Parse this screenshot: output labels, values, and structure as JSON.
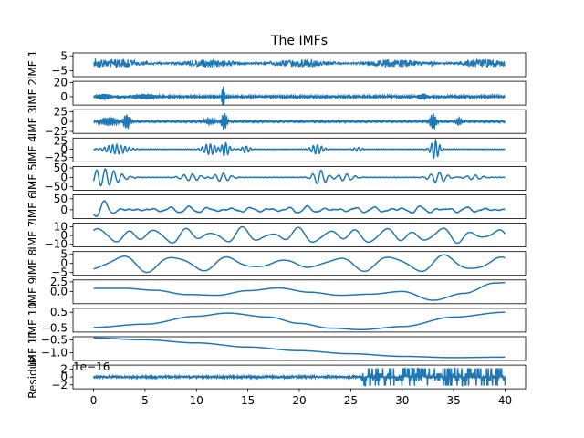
{
  "chart_data": {
    "type": "line",
    "title": "The IMFs",
    "xlabel": "",
    "x_range": [
      0,
      40
    ],
    "xlim": [
      -2,
      42
    ],
    "x_ticks": [
      "0",
      "5",
      "10",
      "15",
      "20",
      "25",
      "30",
      "35",
      "40"
    ],
    "grid": false,
    "legend": "none",
    "line_color": "#1f77b4",
    "panels": [
      {
        "ylabel": "IMF 1",
        "ylim": [
          -9,
          7
        ],
        "y_ticks": [
          {
            "v": 5,
            "t": "5"
          },
          {
            "v": -5,
            "t": "−5"
          }
        ],
        "signal": {
          "kind": "noise",
          "amp": 2.8,
          "bursts": [
            {
              "t": 0.3,
              "w": 0.4,
              "a": 2.5
            },
            {
              "t": 33,
              "w": 0.3,
              "a": 2.0
            }
          ]
        }
      },
      {
        "ylabel": "IMF 2",
        "ylim": [
          -12,
          22
        ],
        "y_ticks": [
          {
            "v": 20,
            "t": "20"
          },
          {
            "v": 0,
            "t": "0"
          }
        ],
        "signal": {
          "kind": "bursts",
          "base": 1.2,
          "freq": 9,
          "bursts": [
            {
              "t": 1,
              "w": 0.8,
              "a": 4
            },
            {
              "t": 12.6,
              "w": 0.15,
              "a": 18
            },
            {
              "t": 5,
              "w": 1.5,
              "a": 3
            },
            {
              "t": 32,
              "w": 0.5,
              "a": 4
            }
          ]
        }
      },
      {
        "ylabel": "IMF 3",
        "ylim": [
          -30,
          30
        ],
        "y_ticks": [
          {
            "v": 25,
            "t": "25"
          },
          {
            "v": 0,
            "t": "0"
          },
          {
            "v": -25,
            "t": "−25"
          }
        ],
        "signal": {
          "kind": "bursts",
          "base": 1.5,
          "freq": 5,
          "bursts": [
            {
              "t": 1.5,
              "w": 1.0,
              "a": 10
            },
            {
              "t": 3.2,
              "w": 0.4,
              "a": 18
            },
            {
              "t": 12.7,
              "w": 0.3,
              "a": 22
            },
            {
              "t": 33,
              "w": 0.35,
              "a": 20
            },
            {
              "t": 35.5,
              "w": 0.3,
              "a": 10
            },
            {
              "t": 11.3,
              "w": 0.6,
              "a": 7
            }
          ]
        }
      },
      {
        "ylabel": "IMF 4",
        "ylim": [
          -38,
          34
        ],
        "y_ticks": [
          {
            "v": 25,
            "t": "25"
          },
          {
            "v": 0,
            "t": "0"
          },
          {
            "v": -25,
            "t": "−25"
          }
        ],
        "signal": {
          "kind": "bursts",
          "base": 1.0,
          "freq": 2.5,
          "bursts": [
            {
              "t": 2.2,
              "w": 1.3,
              "a": 14
            },
            {
              "t": 11.3,
              "w": 0.8,
              "a": 16
            },
            {
              "t": 12.8,
              "w": 0.5,
              "a": 20
            },
            {
              "t": 14.8,
              "w": 0.5,
              "a": 10
            },
            {
              "t": 21.7,
              "w": 0.7,
              "a": 14
            },
            {
              "t": 33.2,
              "w": 0.5,
              "a": 28
            },
            {
              "t": 25.7,
              "w": 0.5,
              "a": 6
            }
          ]
        }
      },
      {
        "ylabel": "IMF 5",
        "ylim": [
          -68,
          58
        ],
        "y_ticks": [
          {
            "v": 50,
            "t": "50"
          },
          {
            "v": 0,
            "t": "0"
          },
          {
            "v": -50,
            "t": "−50"
          }
        ],
        "signal": {
          "kind": "bursts",
          "base": 1.5,
          "freq": 1.2,
          "bursts": [
            {
              "t": 1.0,
              "w": 1.8,
              "a": 45
            },
            {
              "t": 9.5,
              "w": 1.2,
              "a": 18
            },
            {
              "t": 12.5,
              "w": 1.0,
              "a": 22
            },
            {
              "t": 22.0,
              "w": 0.8,
              "a": 38
            },
            {
              "t": 24.5,
              "w": 1.0,
              "a": 18
            },
            {
              "t": 33.5,
              "w": 1.0,
              "a": 28
            },
            {
              "t": 37.0,
              "w": 1.0,
              "a": 12
            }
          ]
        }
      },
      {
        "ylabel": "IMF 6",
        "ylim": [
          -40,
          68
        ],
        "y_ticks": [
          {
            "v": 50,
            "t": "50"
          },
          {
            "v": 0,
            "t": "0"
          }
        ],
        "signal": {
          "kind": "bursts",
          "base": 3,
          "freq": 0.55,
          "bursts": [
            {
              "t": 0.8,
              "w": 1.2,
              "a": 40
            },
            {
              "t": 9,
              "w": 3,
              "a": 14
            },
            {
              "t": 15,
              "w": 2,
              "a": 10
            },
            {
              "t": 20.5,
              "w": 2,
              "a": 16
            },
            {
              "t": 27,
              "w": 3,
              "a": 12
            },
            {
              "t": 31.5,
              "w": 2,
              "a": 18
            },
            {
              "t": 36,
              "w": 2,
              "a": 12
            }
          ]
        }
      },
      {
        "ylabel": "IMF 7",
        "ylim": [
          -13,
          14
        ],
        "y_ticks": [
          {
            "v": 10,
            "t": "10"
          },
          {
            "v": 0,
            "t": "0"
          },
          {
            "v": -10,
            "t": "−10"
          }
        ],
        "signal": {
          "kind": "waves",
          "comps": [
            {
              "a": 5.5,
              "f": 0.36,
              "p": 0.3
            },
            {
              "a": 3.0,
              "f": 0.21,
              "p": 1.1
            },
            {
              "a": 1.5,
              "f": 0.55,
              "p": 2.0
            }
          ]
        }
      },
      {
        "ylabel": "IMF 8",
        "ylim": [
          -6.5,
          6.5
        ],
        "y_ticks": [
          {
            "v": 5,
            "t": "5"
          },
          {
            "v": 0,
            "t": "0"
          },
          {
            "v": -5,
            "t": "−5"
          }
        ],
        "signal": {
          "kind": "waves",
          "env": true,
          "comps": [
            {
              "a": 4.0,
              "f": 0.19,
              "p": 4.7
            },
            {
              "a": 1.0,
              "f": 0.33,
              "p": 0.5
            }
          ]
        }
      },
      {
        "ylabel": "IMF 9",
        "ylim": [
          -3.2,
          3.0
        ],
        "y_ticks": [
          {
            "v": 2.5,
            "t": "2.5"
          },
          {
            "v": 0.0,
            "t": "0.0"
          }
        ],
        "signal": {
          "kind": "points",
          "x": [
            0,
            3,
            6,
            9,
            12,
            15,
            18,
            21,
            24,
            27,
            30,
            33,
            36,
            39,
            40
          ],
          "y": [
            0.8,
            0.8,
            0.3,
            -0.8,
            -1.0,
            0.2,
            0.9,
            -0.2,
            -1.0,
            -0.7,
            0.0,
            -2.3,
            -0.5,
            2.2,
            2.3
          ]
        }
      },
      {
        "ylabel": "IMF 10",
        "ylim": [
          -0.75,
          0.75
        ],
        "y_ticks": [
          {
            "v": 0.5,
            "t": "0.5"
          },
          {
            "v": -0.5,
            "t": "−0.5"
          }
        ],
        "signal": {
          "kind": "points",
          "x": [
            0,
            5,
            10,
            13,
            17,
            20,
            23,
            26,
            30,
            35,
            40
          ],
          "y": [
            -0.45,
            -0.25,
            0.25,
            0.45,
            0.2,
            -0.2,
            -0.5,
            -0.6,
            -0.4,
            0.2,
            0.5
          ]
        }
      },
      {
        "ylabel": "IMF 11",
        "ylim": [
          -1.3,
          -0.38
        ],
        "y_ticks": [
          {
            "v": -0.5,
            "t": "−0.5"
          },
          {
            "v": -1.0,
            "t": "−1.0"
          }
        ],
        "offset_text": "1e−16",
        "signal": {
          "kind": "points",
          "x": [
            0,
            5,
            10,
            15,
            20,
            25,
            30,
            35,
            40
          ],
          "y": [
            -0.43,
            -0.5,
            -0.62,
            -0.78,
            -0.92,
            -1.04,
            -1.14,
            -1.19,
            -1.17
          ]
        }
      },
      {
        "ylabel": "Residue",
        "ylim": [
          -3,
          3
        ],
        "y_ticks": [
          {
            "v": 2,
            "t": "2"
          },
          {
            "v": 0,
            "t": "0"
          },
          {
            "v": -2,
            "t": "−2"
          }
        ],
        "signal": {
          "kind": "residue"
        }
      }
    ]
  }
}
